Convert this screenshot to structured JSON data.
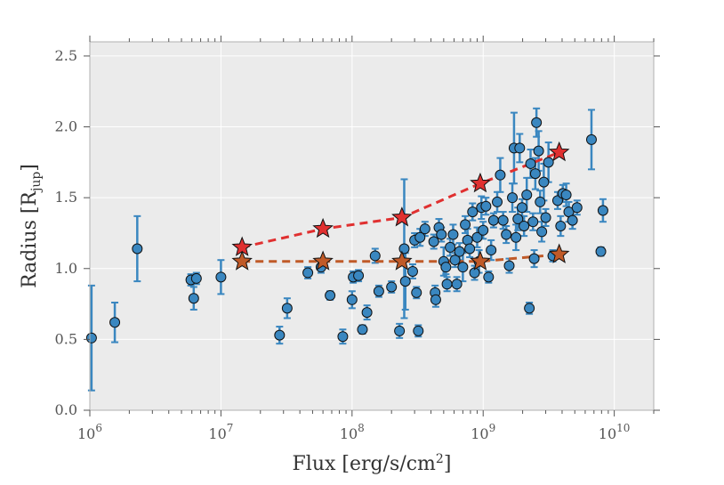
{
  "chart_data": {
    "type": "scatter",
    "title": "",
    "xlabel": {
      "main": "Flux [erg/s/cm",
      "sup": "2",
      "close": "]"
    },
    "ylabel": {
      "main": "Radius [R",
      "sub": "jup",
      "close": "]"
    },
    "xscale": "log",
    "xlim": [
      1000000,
      20000000000
    ],
    "ylim": [
      0.0,
      2.6
    ],
    "grid": true,
    "colors": {
      "background": "#ebebeb",
      "grid": "#ffffff",
      "points": "#3a87c0",
      "errorbars": "#3a87c0",
      "red_series": "#e03030",
      "orange_series": "#c05a28",
      "axis": "#aaaaaa"
    },
    "x_ticks": [
      {
        "value": 1000000,
        "base": "10",
        "exp": "6"
      },
      {
        "value": 10000000,
        "base": "10",
        "exp": "7"
      },
      {
        "value": 100000000,
        "base": "10",
        "exp": "8"
      },
      {
        "value": 1000000000,
        "base": "10",
        "exp": "9"
      },
      {
        "value": 10000000000,
        "base": "10",
        "exp": "10"
      }
    ],
    "y_ticks": [
      {
        "value": 0.0,
        "label": "0.0"
      },
      {
        "value": 0.5,
        "label": "0.5"
      },
      {
        "value": 1.0,
        "label": "1.0"
      },
      {
        "value": 1.5,
        "label": "1.5"
      },
      {
        "value": 2.0,
        "label": "2.0"
      },
      {
        "value": 2.5,
        "label": "2.5"
      }
    ],
    "series": [
      {
        "name": "observed planets",
        "style": "markers-errorbars",
        "points": [
          [
            1030000.0,
            0.51,
            0.37
          ],
          [
            1550000.0,
            0.62,
            0.14
          ],
          [
            2300000.0,
            1.14,
            0.23
          ],
          [
            5900000.0,
            0.92,
            0.04
          ],
          [
            6500000.0,
            0.93,
            0.04
          ],
          [
            6200000.0,
            0.79,
            0.08
          ],
          [
            10000000.0,
            0.94,
            0.12
          ],
          [
            28000000.0,
            0.53,
            0.06
          ],
          [
            32000000.0,
            0.72,
            0.07
          ],
          [
            46000000.0,
            0.97,
            0.04
          ],
          [
            58000000.0,
            1.01,
            0.04
          ],
          [
            68000000.0,
            0.81,
            0.03
          ],
          [
            85000000.0,
            0.52,
            0.05
          ],
          [
            102000000.0,
            0.94,
            0.04
          ],
          [
            112000000.0,
            0.95,
            0.04
          ],
          [
            100000000.0,
            0.78,
            0.06
          ],
          [
            120000000.0,
            0.57,
            0.03
          ],
          [
            130000000.0,
            0.69,
            0.05
          ],
          [
            150000000.0,
            1.09,
            0.05
          ],
          [
            160000000.0,
            0.84,
            0.04
          ],
          [
            200000000.0,
            0.87,
            0.04
          ],
          [
            230000000.0,
            0.56,
            0.05
          ],
          [
            250000000.0,
            1.14,
            0.49
          ],
          [
            255000000.0,
            0.91,
            0.2
          ],
          [
            290000000.0,
            0.98,
            0.05
          ],
          [
            300000000.0,
            1.2,
            0.05
          ],
          [
            310000000.0,
            0.83,
            0.04
          ],
          [
            320000000.0,
            0.56,
            0.04
          ],
          [
            330000000.0,
            1.22,
            0.06
          ],
          [
            360000000.0,
            1.28,
            0.05
          ],
          [
            420000000.0,
            1.19,
            0.05
          ],
          [
            430000000.0,
            0.83,
            0.05
          ],
          [
            435000000.0,
            0.78,
            0.05
          ],
          [
            460000000.0,
            1.29,
            0.06
          ],
          [
            480000000.0,
            1.24,
            0.05
          ],
          [
            500000000.0,
            1.05,
            0.1
          ],
          [
            520000000.0,
            1.01,
            0.05
          ],
          [
            530000000.0,
            0.89,
            0.05
          ],
          [
            560000000.0,
            1.15,
            0.06
          ],
          [
            590000000.0,
            1.24,
            0.07
          ],
          [
            610000000.0,
            1.06,
            0.05
          ],
          [
            630000000.0,
            0.89,
            0.05
          ],
          [
            660000000.0,
            1.12,
            0.06
          ],
          [
            700000000.0,
            1.01,
            0.1
          ],
          [
            730000000.0,
            1.31,
            0.06
          ],
          [
            760000000.0,
            1.2,
            0.08
          ],
          [
            790000000.0,
            1.14,
            0.06
          ],
          [
            830000000.0,
            1.4,
            0.06
          ],
          [
            860000000.0,
            0.97,
            0.05
          ],
          [
            900000000.0,
            1.22,
            0.07
          ],
          [
            930000000.0,
            1.05,
            0.08
          ],
          [
            970000000.0,
            1.43,
            0.08
          ],
          [
            1000000000.0,
            1.27,
            0.06
          ],
          [
            1050000000.0,
            1.44,
            0.06
          ],
          [
            1100000000.0,
            0.94,
            0.04
          ],
          [
            1150000000.0,
            1.13,
            0.07
          ],
          [
            1200000000.0,
            1.34,
            0.05
          ],
          [
            1280000000.0,
            1.47,
            0.07
          ],
          [
            1350000000.0,
            1.66,
            0.12
          ],
          [
            1420000000.0,
            1.34,
            0.06
          ],
          [
            1500000000.0,
            1.24,
            0.06
          ],
          [
            1580000000.0,
            1.02,
            0.05
          ],
          [
            1670000000.0,
            1.5,
            0.1
          ],
          [
            1720000000.0,
            1.85,
            0.25
          ],
          [
            1780000000.0,
            1.22,
            0.09
          ],
          [
            1840000000.0,
            1.35,
            0.08
          ],
          [
            1900000000.0,
            1.85,
            0.1
          ],
          [
            1980000000.0,
            1.43,
            0.06
          ],
          [
            2050000000.0,
            1.3,
            0.07
          ],
          [
            2150000000.0,
            1.52,
            0.12
          ],
          [
            2250000000.0,
            0.72,
            0.04
          ],
          [
            2300000000.0,
            1.74,
            0.1
          ],
          [
            2400000000.0,
            1.33,
            0.06
          ],
          [
            2500000000.0,
            1.67,
            0.11
          ],
          [
            2550000000.0,
            2.03,
            0.1
          ],
          [
            2650000000.0,
            1.83,
            0.14
          ],
          [
            2720000000.0,
            1.47,
            0.08
          ],
          [
            2800000000.0,
            1.26,
            0.07
          ],
          [
            2900000000.0,
            1.61,
            0.13
          ],
          [
            3000000000.0,
            1.36,
            0.06
          ],
          [
            3150000000.0,
            1.75,
            0.14
          ],
          [
            2450000000.0,
            1.07,
            0.06
          ],
          [
            3400000000.0,
            1.09,
            0.04
          ],
          [
            3700000000.0,
            1.48,
            0.06
          ],
          [
            3900000000.0,
            1.3,
            0.07
          ],
          [
            4050000000.0,
            1.53,
            0.06
          ],
          [
            4300000000.0,
            1.52,
            0.08
          ],
          [
            4500000000.0,
            1.4,
            0.07
          ],
          [
            4800000000.0,
            1.34,
            0.06
          ],
          [
            5200000000.0,
            1.43,
            0.05
          ],
          [
            6700000000.0,
            1.91,
            0.21
          ],
          [
            7900000000.0,
            1.12,
            0.03
          ],
          [
            8200000000.0,
            1.41,
            0.08
          ]
        ]
      },
      {
        "name": "red stars",
        "style": "stars-dashed",
        "points": [
          [
            14500000.0,
            1.15
          ],
          [
            60000000.0,
            1.28
          ],
          [
            240000000.0,
            1.36
          ],
          [
            950000000.0,
            1.6
          ],
          [
            3800000000.0,
            1.82
          ]
        ]
      },
      {
        "name": "orange stars",
        "style": "stars-dashed",
        "points": [
          [
            14500000.0,
            1.05
          ],
          [
            60000000.0,
            1.05
          ],
          [
            240000000.0,
            1.05
          ],
          [
            950000000.0,
            1.05
          ],
          [
            3800000000.0,
            1.1
          ]
        ]
      }
    ]
  }
}
